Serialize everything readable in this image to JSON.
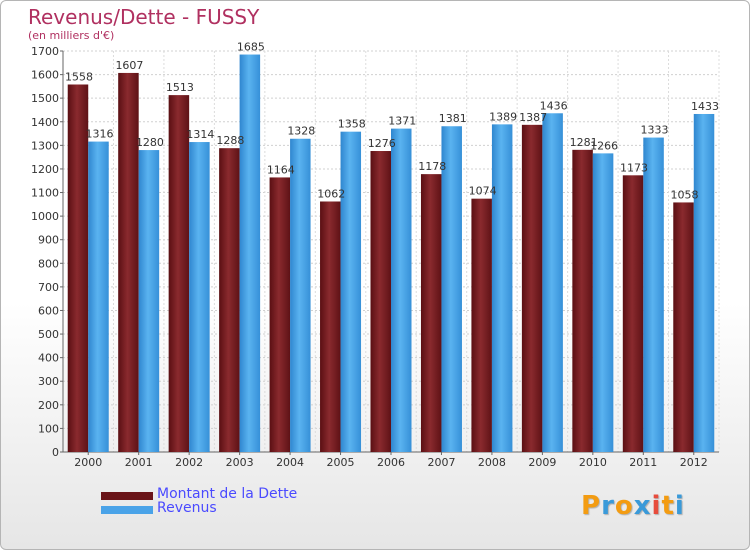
{
  "title": "Revenus/Dette - FUSSY",
  "subtitle": "(en milliers d'€)",
  "brand": {
    "letters": [
      "P",
      "r",
      "o",
      "x",
      "i",
      "t",
      "i"
    ],
    "colors": [
      "#f39c12",
      "#3a9ad9",
      "#f39c12",
      "#3a9ad9",
      "#e74c3c",
      "#f39c12",
      "#3a9ad9"
    ]
  },
  "colors": {
    "dette": "#7a1c20",
    "revenus": "#4aa3e8",
    "title": "#b03060",
    "legend_text": "#4a4aff"
  },
  "chart_data": {
    "type": "bar",
    "title": "Revenus/Dette - FUSSY",
    "ylabel": "(en milliers d'€)",
    "xlabel": "",
    "categories": [
      "2000",
      "2001",
      "2002",
      "2003",
      "2004",
      "2005",
      "2006",
      "2007",
      "2008",
      "2009",
      "2010",
      "2011",
      "2012"
    ],
    "ylim": [
      0,
      1700
    ],
    "yticks": [
      0,
      100,
      200,
      300,
      400,
      500,
      600,
      700,
      800,
      900,
      1000,
      1100,
      1200,
      1300,
      1400,
      1500,
      1600,
      1700
    ],
    "grid": true,
    "legend_position": "bottom-left",
    "series": [
      {
        "name": "Montant de la Dette",
        "color": "#7a1c20",
        "values": [
          1558,
          1607,
          1513,
          1288,
          1164,
          1062,
          1276,
          1178,
          1074,
          1387,
          1281,
          1173,
          1058
        ]
      },
      {
        "name": "Revenus",
        "color": "#4aa3e8",
        "values": [
          1316,
          1280,
          1314,
          1685,
          1328,
          1358,
          1371,
          1381,
          1389,
          1436,
          1266,
          1333,
          1433
        ]
      }
    ]
  }
}
